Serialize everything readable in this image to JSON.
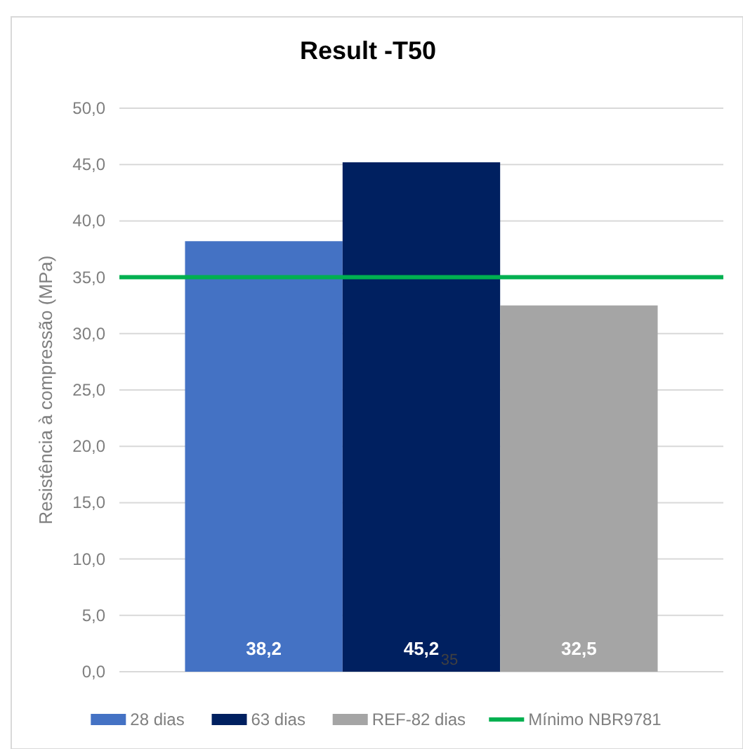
{
  "chart_data": {
    "type": "bar",
    "title": "Result -T50",
    "ylabel": "Resistência à compressão (MPa)",
    "categories": [
      null
    ],
    "series": [
      {
        "name": "28 dias",
        "color": "#4472c4",
        "values": [
          38.2
        ],
        "value_labels": [
          "38,2"
        ]
      },
      {
        "name": "63 dias",
        "color": "#002060",
        "values": [
          45.2
        ],
        "value_labels": [
          "45,2"
        ]
      },
      {
        "name": "REF-82 dias",
        "color": "#a5a5a5",
        "values": [
          32.5
        ],
        "value_labels": [
          "32,5"
        ]
      }
    ],
    "ref_lines": [
      {
        "axis": "y",
        "value": 35,
        "label": "Mínimo NBR9781",
        "color": "#00b050"
      }
    ],
    "annotations": [
      "35"
    ],
    "ylim": [
      0,
      50
    ],
    "yticks": [
      {
        "value": 0,
        "label": "0,0"
      },
      {
        "value": 5,
        "label": "5,0"
      },
      {
        "value": 10,
        "label": "10,0"
      },
      {
        "value": 15,
        "label": "15,0"
      },
      {
        "value": 20,
        "label": "20,0"
      },
      {
        "value": 25,
        "label": "25,0"
      },
      {
        "value": 30,
        "label": "30,0"
      },
      {
        "value": 35,
        "label": "35,0"
      },
      {
        "value": 40,
        "label": "40,0"
      },
      {
        "value": 45,
        "label": "45,0"
      },
      {
        "value": 50,
        "label": "50,0"
      }
    ],
    "grid": "y",
    "legend": "bottom"
  }
}
